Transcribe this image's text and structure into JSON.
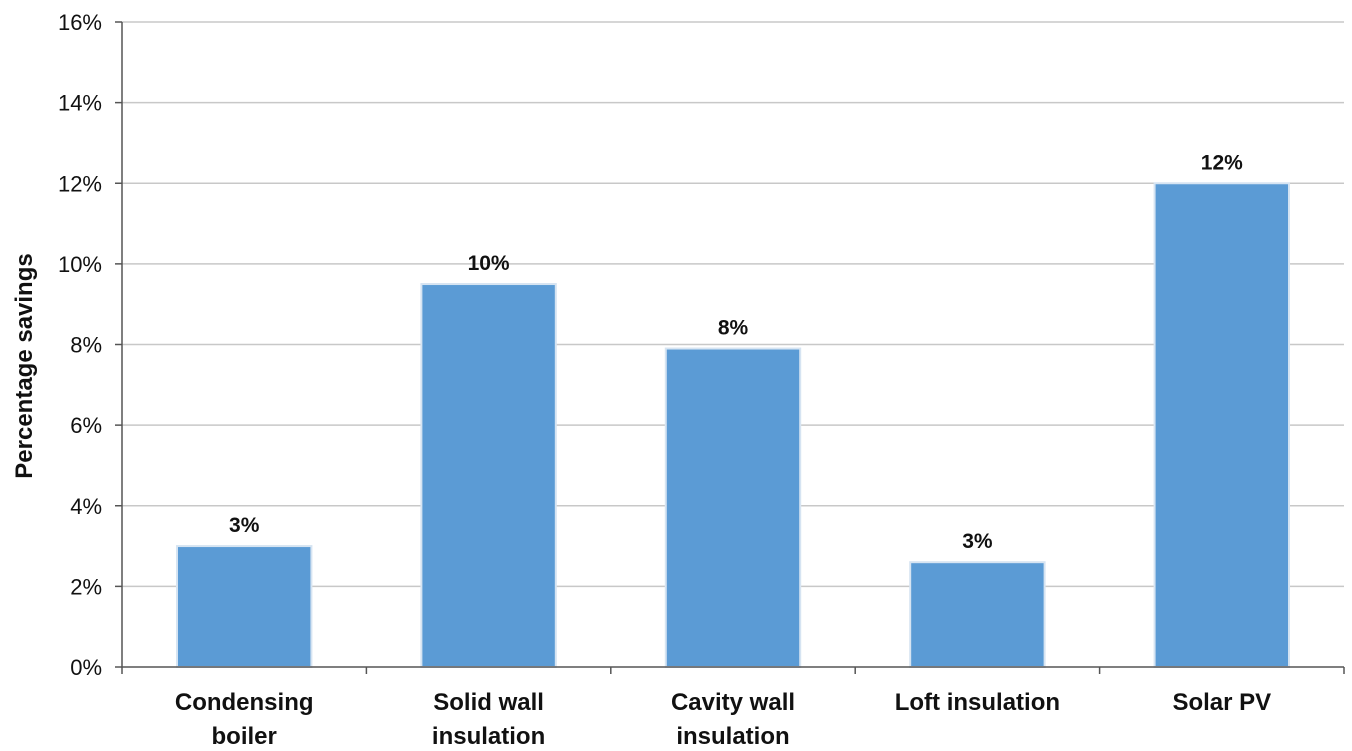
{
  "chart_data": {
    "type": "bar",
    "title": "",
    "xlabel": "",
    "ylabel": "Percentage savings",
    "ylim": [
      0,
      0.16
    ],
    "yticks": [
      0,
      0.02,
      0.04,
      0.06,
      0.08,
      0.1,
      0.12,
      0.14,
      0.16
    ],
    "ytick_labels": [
      "0%",
      "2%",
      "4%",
      "6%",
      "8%",
      "10%",
      "12%",
      "14%",
      "16%"
    ],
    "grid": true,
    "legend": "none",
    "bar_color": "#5b9bd5",
    "categories": [
      [
        "Condensing",
        "boiler"
      ],
      [
        "Solid wall",
        "insulation"
      ],
      [
        "Cavity wall",
        "insulation"
      ],
      [
        "Loft insulation"
      ],
      [
        "Solar PV"
      ]
    ],
    "values": [
      0.03,
      0.095,
      0.079,
      0.026,
      0.12
    ],
    "data_labels": [
      "3%",
      "10%",
      "8%",
      "3%",
      "12%"
    ]
  }
}
